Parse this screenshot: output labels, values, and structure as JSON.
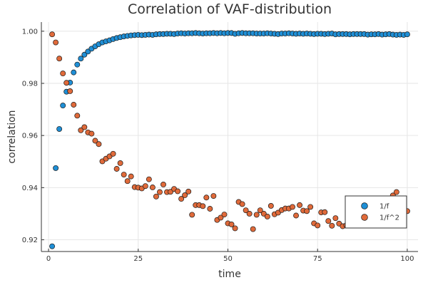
{
  "chart_data": {
    "type": "scatter",
    "title": "Correlation of VAF-distribution",
    "xlabel": "time",
    "ylabel": "correlation",
    "xlim": [
      -2,
      103
    ],
    "ylim": [
      0.9155,
      1.0035
    ],
    "xticks": [
      0,
      25,
      50,
      75,
      100
    ],
    "yticks": [
      0.92,
      0.94,
      0.96,
      0.98,
      1.0
    ],
    "xtick_labels": [
      "0",
      "25",
      "50",
      "75",
      "100"
    ],
    "ytick_labels": [
      "0.92",
      "0.94",
      "0.96",
      "0.98",
      "1.00"
    ],
    "grid": true,
    "legend_position": "bottom-right",
    "x": [
      1,
      2,
      3,
      4,
      5,
      6,
      7,
      8,
      9,
      10,
      11,
      12,
      13,
      14,
      15,
      16,
      17,
      18,
      19,
      20,
      21,
      22,
      23,
      24,
      25,
      26,
      27,
      28,
      29,
      30,
      31,
      32,
      33,
      34,
      35,
      36,
      37,
      38,
      39,
      40,
      41,
      42,
      43,
      44,
      45,
      46,
      47,
      48,
      49,
      50,
      51,
      52,
      53,
      54,
      55,
      56,
      57,
      58,
      59,
      60,
      61,
      62,
      63,
      64,
      65,
      66,
      67,
      68,
      69,
      70,
      71,
      72,
      73,
      74,
      75,
      76,
      77,
      78,
      79,
      80,
      81,
      82,
      83,
      84,
      85,
      86,
      87,
      88,
      89,
      90,
      91,
      92,
      93,
      94,
      95,
      96,
      97,
      98,
      99,
      100
    ],
    "series": [
      {
        "name": "1/f",
        "color": "#1f8fd6",
        "values": [
          0.9175,
          0.9475,
          0.9625,
          0.9715,
          0.9768,
          0.9803,
          0.9842,
          0.9872,
          0.9895,
          0.991,
          0.9922,
          0.9933,
          0.9942,
          0.995,
          0.9957,
          0.9961,
          0.9965,
          0.997,
          0.9974,
          0.9977,
          0.998,
          0.9982,
          0.9984,
          0.9985,
          0.9986,
          0.9985,
          0.9986,
          0.9987,
          0.9986,
          0.9988,
          0.9989,
          0.9989,
          0.999,
          0.999,
          0.9989,
          0.9991,
          0.9992,
          0.9991,
          0.9992,
          0.9992,
          0.9993,
          0.9992,
          0.9991,
          0.9992,
          0.9992,
          0.9993,
          0.9992,
          0.9993,
          0.9992,
          0.9993,
          0.9993,
          0.999,
          0.9992,
          0.9993,
          0.9992,
          0.9992,
          0.9992,
          0.9991,
          0.9991,
          0.9991,
          0.9992,
          0.9991,
          0.999,
          0.9989,
          0.9991,
          0.9991,
          0.9992,
          0.9991,
          0.999,
          0.9991,
          0.999,
          0.9991,
          0.999,
          0.9989,
          0.999,
          0.999,
          0.9989,
          0.999,
          0.9991,
          0.9988,
          0.9989,
          0.9989,
          0.9989,
          0.9988,
          0.9989,
          0.9989,
          0.9989,
          0.9989,
          0.9987,
          0.9988,
          0.9988,
          0.9989,
          0.9987,
          0.9988,
          0.9989,
          0.9987,
          0.9986,
          0.9987,
          0.9986,
          0.9988
        ]
      },
      {
        "name": "1/f^2",
        "color": "#e06a3a",
        "values": [
          0.9988,
          0.9957,
          0.9895,
          0.9838,
          0.9802,
          0.977,
          0.9718,
          0.9676,
          0.962,
          0.9632,
          0.9612,
          0.9607,
          0.958,
          0.9567,
          0.9501,
          0.9511,
          0.952,
          0.953,
          0.9472,
          0.9494,
          0.945,
          0.9425,
          0.9443,
          0.9402,
          0.94,
          0.9397,
          0.9406,
          0.9432,
          0.9401,
          0.9366,
          0.9383,
          0.9412,
          0.9383,
          0.9384,
          0.9395,
          0.9386,
          0.9357,
          0.9371,
          0.9385,
          0.9296,
          0.9333,
          0.9333,
          0.9329,
          0.9362,
          0.9319,
          0.9368,
          0.9276,
          0.9285,
          0.9297,
          0.9263,
          0.9259,
          0.9244,
          0.9345,
          0.9337,
          0.9313,
          0.93,
          0.9241,
          0.9296,
          0.9313,
          0.93,
          0.9289,
          0.933,
          0.9298,
          0.9304,
          0.9314,
          0.932,
          0.932,
          0.9326,
          0.9293,
          0.9333,
          0.9312,
          0.931,
          0.9326,
          0.9263,
          0.9255,
          0.9305,
          0.9306,
          0.9272,
          0.9254,
          0.9283,
          0.9262,
          0.9252,
          0.9256,
          0.9275,
          0.9269,
          0.9279,
          0.93,
          0.9317,
          0.9301,
          0.9314,
          0.9277,
          0.9302,
          0.9262,
          0.9285,
          0.9305,
          0.937,
          0.9383,
          0.9346,
          0.932,
          0.931
        ]
      }
    ]
  }
}
